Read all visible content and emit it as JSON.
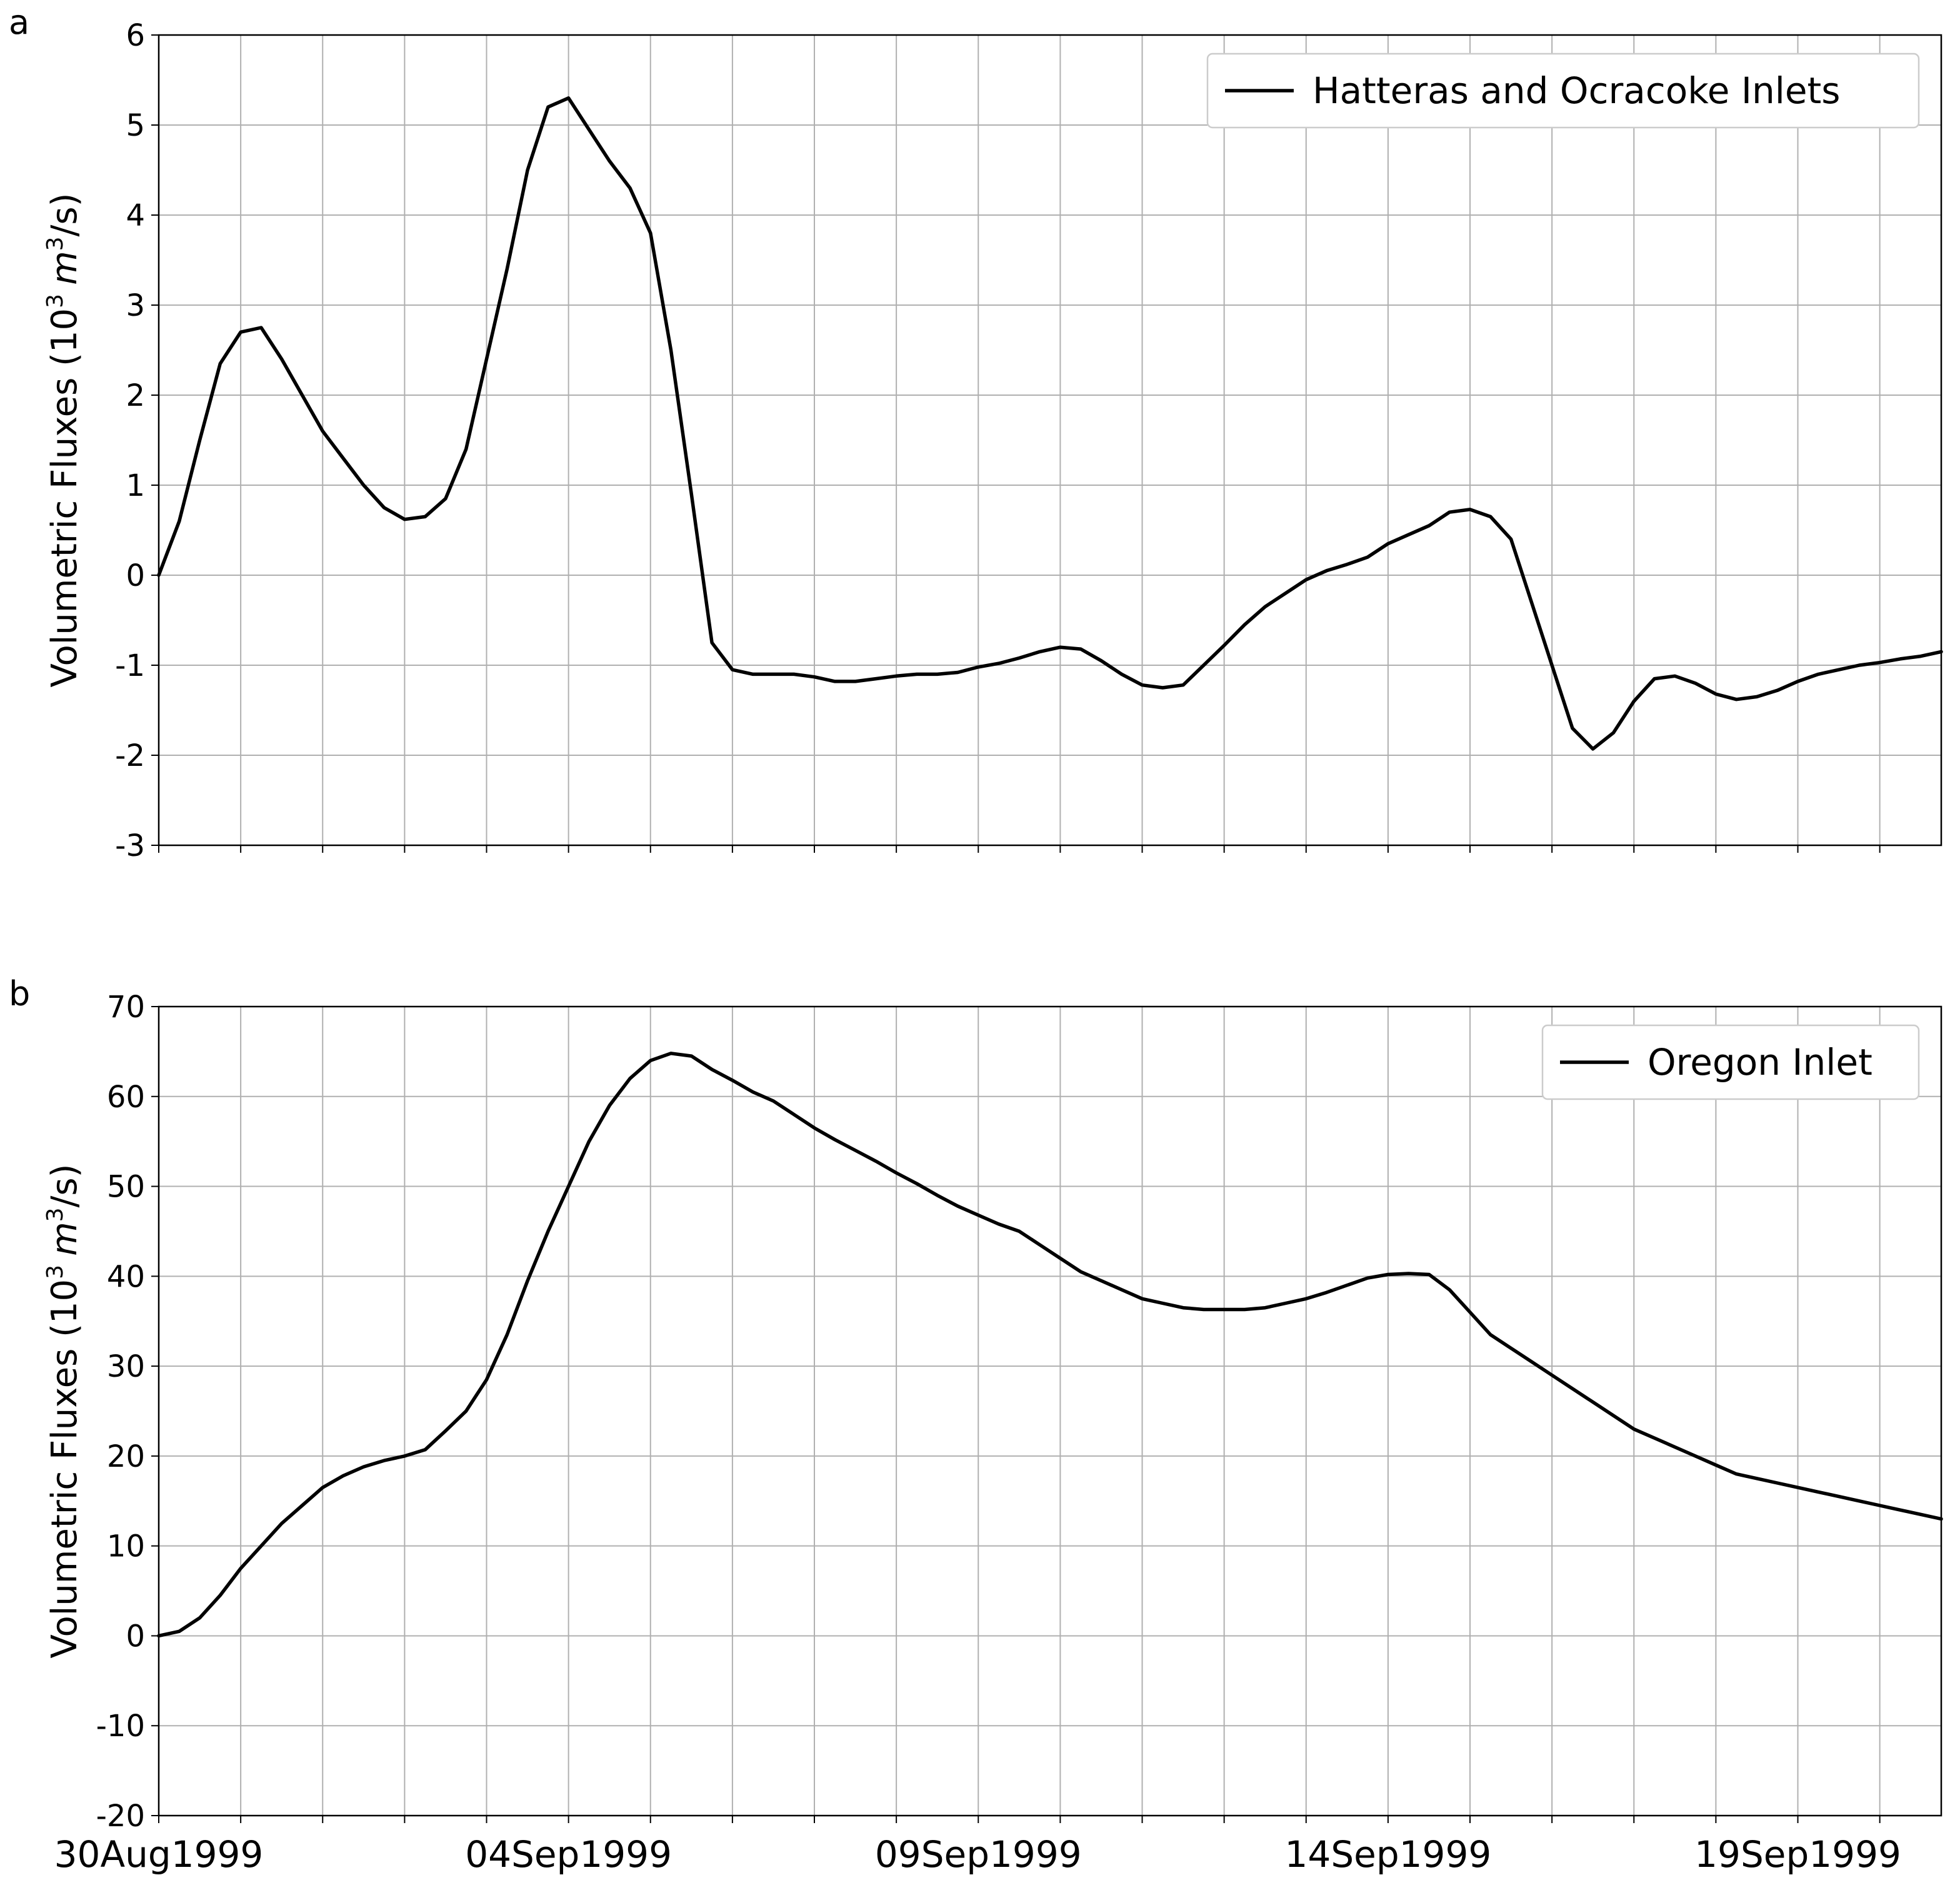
{
  "chart_data": [
    {
      "type": "line",
      "panel_label": "a",
      "ylabel": "Volumetric Fluxes (10³ m³/s)",
      "ylabel_parts": {
        "prefix": "Volumetric Fluxes (10",
        "exp1": "3",
        "unit_var": "m",
        "exp2": "3",
        "suffix": "/s)"
      },
      "ylim": [
        -3,
        6
      ],
      "yticks": [
        -3,
        -2,
        -1,
        0,
        1,
        2,
        3,
        4,
        5,
        6
      ],
      "xlim": [
        0,
        21.75
      ],
      "x_tick_labels": [
        "30Aug1999",
        "04Sep1999",
        "09Sep1999",
        "14Sep1999",
        "19Sep1999"
      ],
      "x_tick_days": [
        0,
        5,
        10,
        15,
        20
      ],
      "grid": true,
      "legend_position": "upper right",
      "series": [
        {
          "name": "Hatteras and Ocracoke Inlets",
          "color": "#000000",
          "x": [
            0,
            0.25,
            0.5,
            0.75,
            1.0,
            1.25,
            1.5,
            1.75,
            2.0,
            2.25,
            2.5,
            2.75,
            3.0,
            3.25,
            3.5,
            3.75,
            4.0,
            4.25,
            4.5,
            4.75,
            5.0,
            5.25,
            5.5,
            5.75,
            6.0,
            6.25,
            6.5,
            6.75,
            7.0,
            7.25,
            7.5,
            7.75,
            8.0,
            8.25,
            8.5,
            8.75,
            9.0,
            9.25,
            9.5,
            9.75,
            10.0,
            10.25,
            10.5,
            10.75,
            11.0,
            11.25,
            11.5,
            11.75,
            12.0,
            12.25,
            12.5,
            12.75,
            13.0,
            13.25,
            13.5,
            13.75,
            14.0,
            14.25,
            14.5,
            14.75,
            15.0,
            15.25,
            15.5,
            15.75,
            16.0,
            16.25,
            16.5,
            16.75,
            17.0,
            17.25,
            17.5,
            17.75,
            18.0,
            18.25,
            18.5,
            18.75,
            19.0,
            19.25,
            19.5,
            19.75,
            20.0,
            20.25,
            20.5,
            20.75,
            21.0,
            21.25,
            21.5,
            21.75
          ],
          "y": [
            0.0,
            0.6,
            1.5,
            2.35,
            2.7,
            2.75,
            2.4,
            2.0,
            1.6,
            1.3,
            1.0,
            0.75,
            0.62,
            0.65,
            0.85,
            1.4,
            2.4,
            3.4,
            4.5,
            5.2,
            5.3,
            4.95,
            4.6,
            4.3,
            3.8,
            2.5,
            0.9,
            -0.75,
            -1.05,
            -1.1,
            -1.1,
            -1.1,
            -1.13,
            -1.18,
            -1.18,
            -1.15,
            -1.12,
            -1.1,
            -1.1,
            -1.08,
            -1.02,
            -0.98,
            -0.92,
            -0.85,
            -0.8,
            -0.82,
            -0.95,
            -1.1,
            -1.22,
            -1.25,
            -1.22,
            -1.0,
            -0.78,
            -0.55,
            -0.35,
            -0.2,
            -0.05,
            0.05,
            0.12,
            0.2,
            0.35,
            0.45,
            0.55,
            0.7,
            0.73,
            0.65,
            0.4,
            -0.3,
            -1.0,
            -1.7,
            -1.93,
            -1.75,
            -1.4,
            -1.15,
            -1.12,
            -1.2,
            -1.32,
            -1.38,
            -1.35,
            -1.28,
            -1.18,
            -1.1,
            -1.05,
            -1.0,
            -0.97,
            -0.93,
            -0.9,
            -0.85
          ]
        }
      ]
    },
    {
      "type": "line",
      "panel_label": "b",
      "ylabel": "Volumetric Fluxes (10³ m³/s)",
      "ylabel_parts": {
        "prefix": "Volumetric Fluxes (10",
        "exp1": "3",
        "unit_var": "m",
        "exp2": "3",
        "suffix": "/s)"
      },
      "ylim": [
        -20,
        70
      ],
      "yticks": [
        -20,
        -10,
        0,
        10,
        20,
        30,
        40,
        50,
        60,
        70
      ],
      "xlim": [
        0,
        21.75
      ],
      "x_tick_labels": [
        "30Aug1999",
        "04Sep1999",
        "09Sep1999",
        "14Sep1999",
        "19Sep1999"
      ],
      "x_tick_days": [
        0,
        5,
        10,
        15,
        20
      ],
      "grid": true,
      "legend_position": "upper right",
      "series": [
        {
          "name": "Oregon Inlet",
          "color": "#000000",
          "x": [
            0,
            0.25,
            0.5,
            0.75,
            1.0,
            1.25,
            1.5,
            1.75,
            2.0,
            2.25,
            2.5,
            2.75,
            3.0,
            3.25,
            3.5,
            3.75,
            4.0,
            4.25,
            4.5,
            4.75,
            5.0,
            5.25,
            5.5,
            5.75,
            6.0,
            6.25,
            6.5,
            6.75,
            7.0,
            7.25,
            7.5,
            7.75,
            8.0,
            8.25,
            8.5,
            8.75,
            9.0,
            9.25,
            9.5,
            9.75,
            10.0,
            10.25,
            10.5,
            10.75,
            11.0,
            11.25,
            11.5,
            11.75,
            12.0,
            12.25,
            12.5,
            12.75,
            13.0,
            13.25,
            13.5,
            13.75,
            14.0,
            14.25,
            14.5,
            14.75,
            15.0,
            15.25,
            15.5,
            15.75,
            16.0,
            16.25,
            16.5,
            16.75,
            17.0,
            17.25,
            17.5,
            17.75,
            18.0,
            18.25,
            18.5,
            18.75,
            19.0,
            19.25,
            19.5,
            19.75,
            20.0,
            20.25,
            20.5,
            20.75,
            21.0,
            21.25,
            21.5,
            21.75
          ],
          "y": [
            0.0,
            0.5,
            2.0,
            4.5,
            7.5,
            10.0,
            12.5,
            14.5,
            16.5,
            17.8,
            18.8,
            19.5,
            20.0,
            20.7,
            22.8,
            25.0,
            28.5,
            33.5,
            39.5,
            45.0,
            50.0,
            55.0,
            59.0,
            62.0,
            64.0,
            64.8,
            64.5,
            63.0,
            61.8,
            60.5,
            59.5,
            58.0,
            56.5,
            55.2,
            54.0,
            52.8,
            51.5,
            50.3,
            49.0,
            47.8,
            46.8,
            45.8,
            45.0,
            43.5,
            42.0,
            40.5,
            39.5,
            38.5,
            37.5,
            37.0,
            36.5,
            36.3,
            36.3,
            36.3,
            36.5,
            37.0,
            37.5,
            38.2,
            39.0,
            39.8,
            40.2,
            40.3,
            40.2,
            38.5,
            36.0,
            33.5,
            32.0,
            30.5,
            29.0,
            27.5,
            26.0,
            24.5,
            23.0,
            22.0,
            21.0,
            20.0,
            19.0,
            18.0,
            17.5,
            17.0,
            16.5,
            16.0,
            15.5,
            15.0,
            14.5,
            14.0,
            13.5,
            13.0
          ]
        }
      ]
    }
  ]
}
